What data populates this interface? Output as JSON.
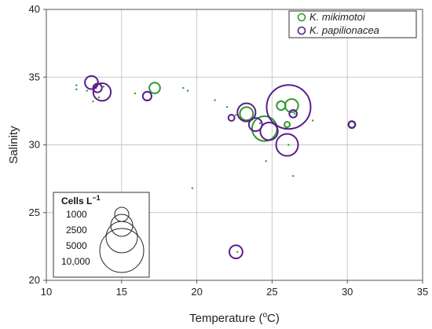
{
  "chart_data": {
    "type": "scatter",
    "title": "",
    "xlabel": "Temperature (",
    "xlabel_super": "o",
    "xlabel_end": "C)",
    "ylabel": "Salinity",
    "xlim": [
      10,
      35
    ],
    "ylim": [
      20,
      40
    ],
    "xticks": [
      10,
      15,
      20,
      25,
      30,
      35
    ],
    "yticks": [
      20,
      25,
      30,
      35,
      40
    ],
    "grid": true,
    "legend_position": "top-right",
    "colors": {
      "green": "#2e9a2e",
      "purple": "#5a1e8c"
    },
    "series": [
      {
        "name": "K. mikimotoi",
        "color": "#2e9a2e",
        "marker": "circle-open",
        "points": [
          {
            "x": 12.0,
            "y": 34.4,
            "cells": 0
          },
          {
            "x": 12.0,
            "y": 34.1,
            "cells": 0
          },
          {
            "x": 12.7,
            "y": 34.0,
            "cells": 0
          },
          {
            "x": 13.1,
            "y": 33.2,
            "cells": 0
          },
          {
            "x": 13.3,
            "y": 34.2,
            "cells": 0
          },
          {
            "x": 13.5,
            "y": 34.5,
            "cells": 0
          },
          {
            "x": 13.5,
            "y": 33.5,
            "cells": 0
          },
          {
            "x": 13.8,
            "y": 34.3,
            "cells": 0
          },
          {
            "x": 15.9,
            "y": 33.8,
            "cells": 0
          },
          {
            "x": 17.2,
            "y": 34.2,
            "cells": 600
          },
          {
            "x": 19.1,
            "y": 34.2,
            "cells": 0
          },
          {
            "x": 19.4,
            "y": 34.0,
            "cells": 0
          },
          {
            "x": 19.7,
            "y": 26.8,
            "cells": 0
          },
          {
            "x": 21.2,
            "y": 33.3,
            "cells": 0
          },
          {
            "x": 22.0,
            "y": 32.8,
            "cells": 0
          },
          {
            "x": 22.6,
            "y": 32.2,
            "cells": 0
          },
          {
            "x": 22.7,
            "y": 22.1,
            "cells": 0
          },
          {
            "x": 23.3,
            "y": 32.3,
            "cells": 900
          },
          {
            "x": 24.2,
            "y": 31.6,
            "cells": 0
          },
          {
            "x": 24.5,
            "y": 31.2,
            "cells": 3200
          },
          {
            "x": 24.6,
            "y": 28.8,
            "cells": 0
          },
          {
            "x": 25.2,
            "y": 31.5,
            "cells": 0
          },
          {
            "x": 25.6,
            "y": 32.9,
            "cells": 400
          },
          {
            "x": 26.0,
            "y": 31.5,
            "cells": 150
          },
          {
            "x": 26.1,
            "y": 30.0,
            "cells": 0
          },
          {
            "x": 26.3,
            "y": 32.9,
            "cells": 900
          },
          {
            "x": 26.4,
            "y": 27.7,
            "cells": 0
          },
          {
            "x": 26.5,
            "y": 32.3,
            "cells": 0
          },
          {
            "x": 27.7,
            "y": 31.8,
            "cells": 0
          },
          {
            "x": 30.3,
            "y": 31.5,
            "cells": 200
          }
        ]
      },
      {
        "name": "K. papilionacea",
        "color": "#5a1e8c",
        "marker": "circle-open",
        "points": [
          {
            "x": 13.0,
            "y": 34.6,
            "cells": 900
          },
          {
            "x": 13.4,
            "y": 34.2,
            "cells": 400
          },
          {
            "x": 13.7,
            "y": 33.9,
            "cells": 1600
          },
          {
            "x": 16.7,
            "y": 33.6,
            "cells": 400
          },
          {
            "x": 22.3,
            "y": 32.0,
            "cells": 200
          },
          {
            "x": 22.6,
            "y": 22.1,
            "cells": 900
          },
          {
            "x": 23.3,
            "y": 32.4,
            "cells": 1700
          },
          {
            "x": 23.9,
            "y": 31.5,
            "cells": 900
          },
          {
            "x": 24.8,
            "y": 31.0,
            "cells": 1600
          },
          {
            "x": 26.0,
            "y": 30.0,
            "cells": 2500
          },
          {
            "x": 26.1,
            "y": 32.8,
            "cells": 10000
          },
          {
            "x": 26.4,
            "y": 32.3,
            "cells": 300
          },
          {
            "x": 30.3,
            "y": 31.5,
            "cells": 250
          }
        ]
      }
    ],
    "size_legend": {
      "title": "Cells L",
      "title_super": "−1",
      "entries": [
        {
          "label": "1000",
          "cells": 1000
        },
        {
          "label": "2500",
          "cells": 2500
        },
        {
          "label": "5000",
          "cells": 5000
        },
        {
          "label": "10,000",
          "cells": 10000
        }
      ]
    }
  }
}
